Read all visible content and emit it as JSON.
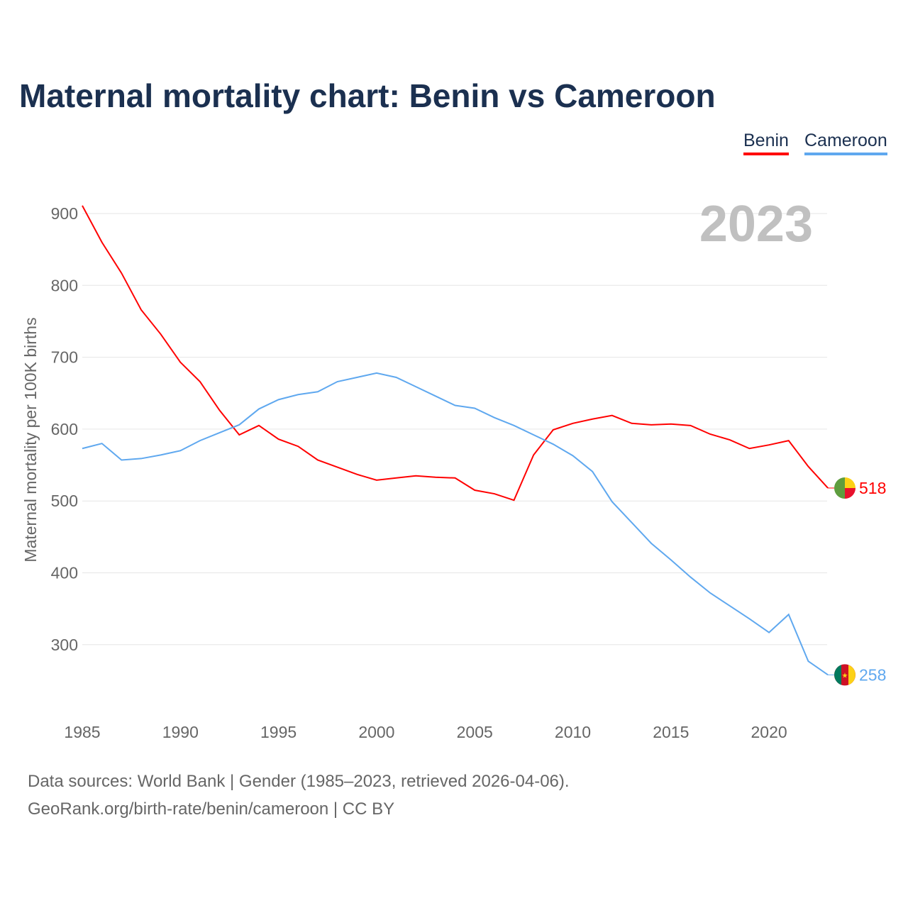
{
  "title": "Maternal mortality chart: Benin vs Cameroon",
  "year_label": "2023",
  "legend": [
    "Benin",
    "Cameroon"
  ],
  "sources": [
    "Data sources: World Bank | Gender (1985–2023, retrieved 2026-04-06).",
    "GeoRank.org/birth-rate/benin/cameroon | CC BY"
  ],
  "chart_data": {
    "type": "line",
    "title": "Maternal mortality chart: Benin vs Cameroon",
    "xlabel": "",
    "ylabel": "Maternal mortality per 100K births",
    "xlim": [
      1985,
      2023
    ],
    "ylim": [
      200,
      940
    ],
    "xticks": [
      1985,
      1990,
      1995,
      2000,
      2005,
      2010,
      2015,
      2020
    ],
    "yticks": [
      300,
      400,
      500,
      600,
      700,
      800,
      900
    ],
    "grid": true,
    "legend_placement": "top-right",
    "x": [
      1985,
      1986,
      1987,
      1988,
      1989,
      1990,
      1991,
      1992,
      1993,
      1994,
      1995,
      1996,
      1997,
      1998,
      1999,
      2000,
      2001,
      2002,
      2003,
      2004,
      2005,
      2006,
      2007,
      2008,
      2009,
      2010,
      2011,
      2012,
      2013,
      2014,
      2015,
      2016,
      2017,
      2018,
      2019,
      2020,
      2021,
      2022,
      2023
    ],
    "series": [
      {
        "name": "Benin",
        "color": "#ff0000",
        "end_label": "518",
        "values": [
          911,
          860,
          817,
          766,
          732,
          693,
          666,
          626,
          592,
          605,
          586,
          576,
          557,
          547,
          537,
          529,
          532,
          535,
          533,
          532,
          515,
          510,
          501,
          564,
          599,
          608,
          614,
          619,
          608,
          606,
          607,
          605,
          593,
          585,
          573,
          578,
          584,
          548,
          518
        ]
      },
      {
        "name": "Cameroon",
        "color": "#5fa8ef",
        "end_label": "258",
        "values": [
          573,
          580,
          557,
          559,
          564,
          570,
          584,
          595,
          606,
          628,
          641,
          648,
          652,
          666,
          672,
          678,
          672,
          659,
          646,
          633,
          629,
          616,
          605,
          592,
          579,
          563,
          541,
          499,
          470,
          441,
          418,
          394,
          372,
          354,
          336,
          317,
          342,
          277,
          258
        ]
      }
    ]
  }
}
